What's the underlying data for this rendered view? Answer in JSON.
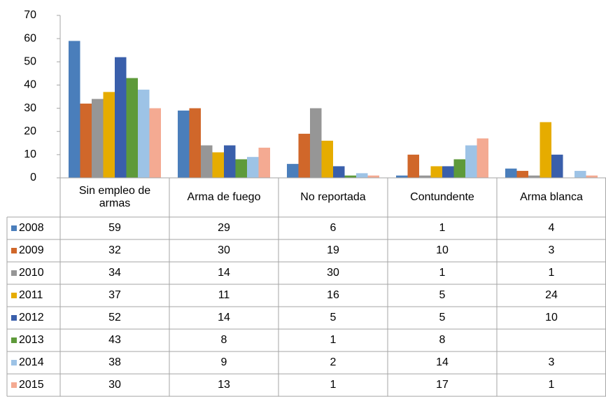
{
  "chart_data": {
    "type": "bar",
    "categories": [
      "Sin empleo de armas",
      "Arma de fuego",
      "No reportada",
      "Contundente",
      "Arma blanca"
    ],
    "series": [
      {
        "name": "2008",
        "color": "#4a7ebb",
        "values": [
          59,
          29,
          6,
          1,
          4
        ]
      },
      {
        "name": "2009",
        "color": "#d0672a",
        "values": [
          32,
          30,
          19,
          10,
          3
        ]
      },
      {
        "name": "2010",
        "color": "#969696",
        "values": [
          34,
          14,
          30,
          1,
          1
        ]
      },
      {
        "name": "2011",
        "color": "#e6ac00",
        "values": [
          37,
          11,
          16,
          5,
          24
        ]
      },
      {
        "name": "2012",
        "color": "#3a5fab",
        "values": [
          52,
          14,
          5,
          5,
          10
        ]
      },
      {
        "name": "2013",
        "color": "#5e9a3a",
        "values": [
          43,
          8,
          1,
          8,
          null
        ]
      },
      {
        "name": "2014",
        "color": "#9dc3e6",
        "values": [
          38,
          9,
          2,
          14,
          3
        ]
      },
      {
        "name": "2015",
        "color": "#f4aa92",
        "values": [
          30,
          13,
          1,
          17,
          1
        ]
      }
    ],
    "ylim": [
      0,
      70
    ],
    "yticks": [
      0,
      10,
      20,
      30,
      40,
      50,
      60,
      70
    ],
    "grid": false,
    "data_table": true
  }
}
